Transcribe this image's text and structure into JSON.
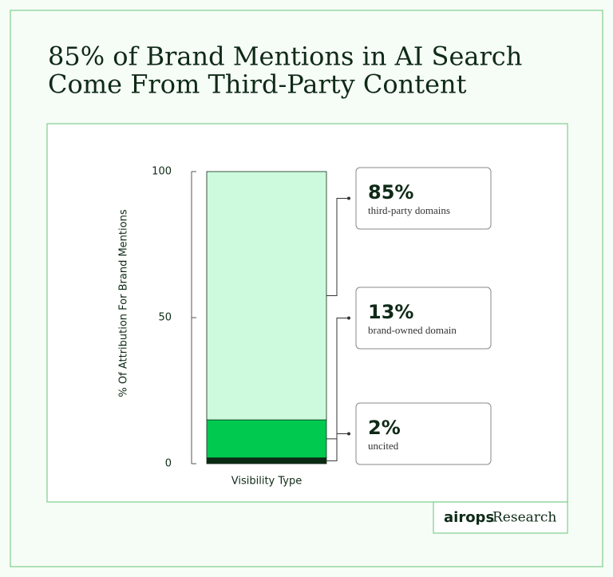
{
  "chart_data": {
    "type": "stacked_bar",
    "title": [
      "85% of Brand Mentions in AI Search",
      "Come From Third-Party Content"
    ],
    "y_label": "% Of Attribution For Brand Mentions",
    "categories": [
      "Visibility Type"
    ],
    "series": [
      {
        "name": "uncited",
        "color": "#0b2a14",
        "values": [
          2
        ],
        "value_labels": [
          "2%"
        ]
      },
      {
        "name": "brand-owned domain",
        "color": "#00c94f",
        "values": [
          13
        ],
        "value_labels": [
          "13%"
        ]
      },
      {
        "name": "third-party domains",
        "color": "#cdfadc",
        "values": [
          85
        ],
        "value_labels": [
          "85%"
        ]
      }
    ],
    "ylim": [
      0,
      100
    ],
    "yticks": [
      0,
      50,
      100
    ],
    "brand": "airops",
    "brand_suffix": "Research"
  }
}
